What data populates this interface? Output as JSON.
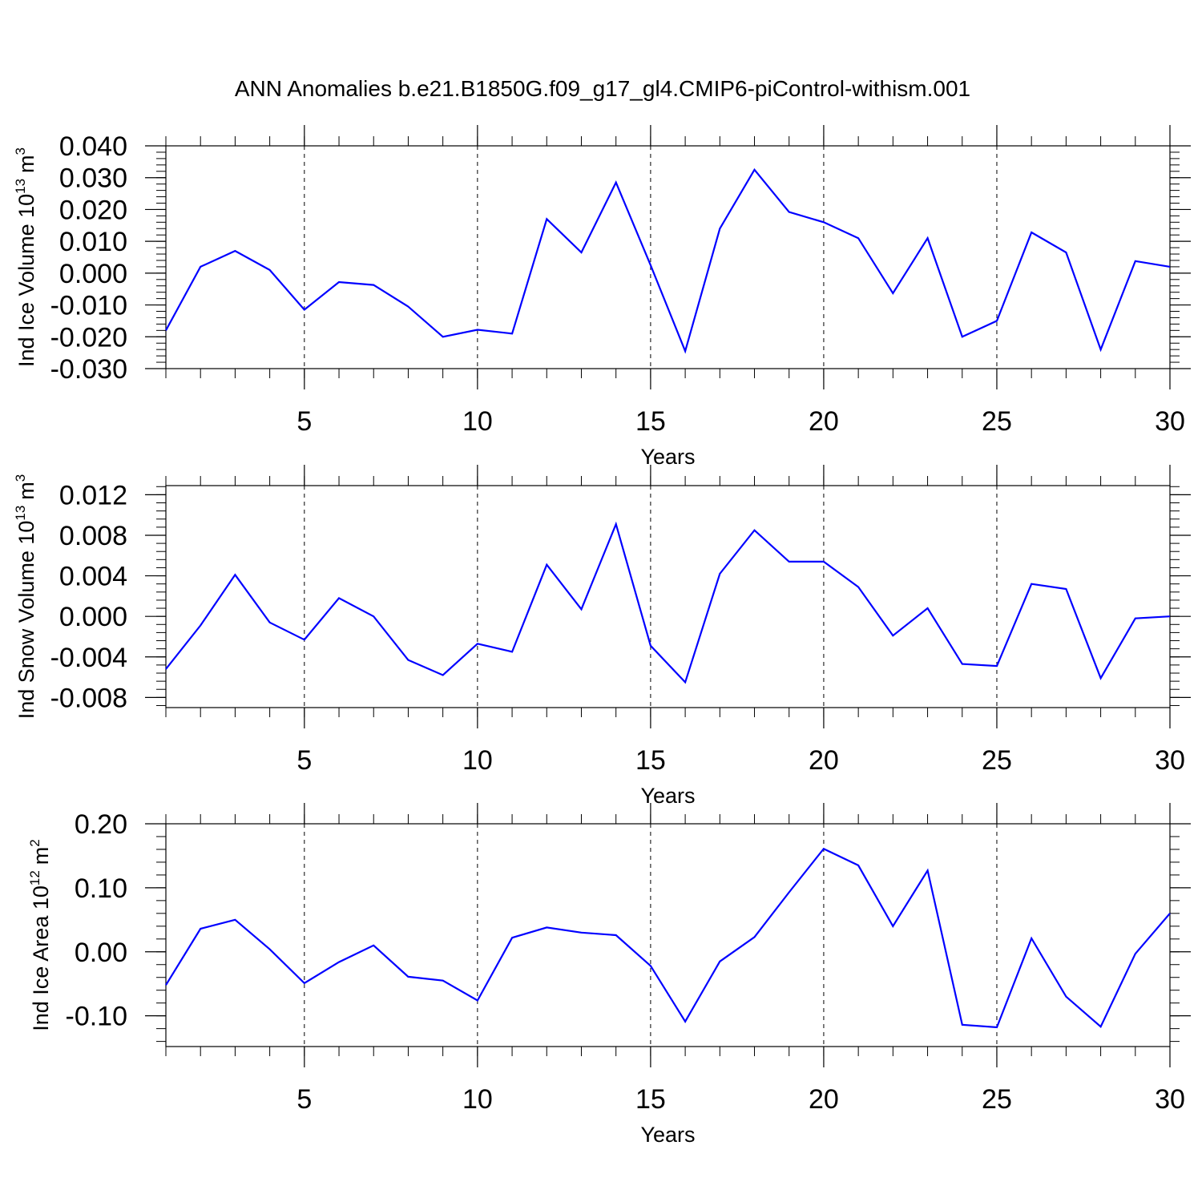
{
  "title": "ANN Anomalies b.e21.B1850G.f09_g17_gl4.CMIP6-piControl-withism.001",
  "colors": {
    "line": "#0000ff",
    "axes": "#000000",
    "grid": "#000000"
  },
  "chart_data": [
    {
      "type": "line",
      "ylabel": "Ind Ice Volume 10",
      "ylabel_exp": "13",
      "ylabel_unit": "m",
      "ylabel_unit_exp": "3",
      "xlabel": "Years",
      "xlim": [
        1,
        30
      ],
      "ylim": [
        -0.03,
        0.04
      ],
      "xticks": [
        "5",
        "10",
        "15",
        "20",
        "25",
        "30"
      ],
      "yticks": [
        "-0.030",
        "-0.020",
        "-0.010",
        "0.000",
        "0.010",
        "0.020",
        "0.030",
        "0.040"
      ],
      "grid": "vertical dashed at major x ticks",
      "x": [
        1,
        2,
        3,
        4,
        5,
        6,
        7,
        8,
        9,
        10,
        11,
        12,
        13,
        14,
        15,
        16,
        17,
        18,
        19,
        20,
        21,
        22,
        23,
        24,
        25,
        26,
        27,
        28,
        29,
        30
      ],
      "y": [
        -0.018,
        0.002,
        0.007,
        0.001,
        -0.0115,
        -0.0028,
        -0.0037,
        -0.0105,
        -0.02,
        -0.0178,
        -0.019,
        0.017,
        0.0065,
        0.0285,
        0.0025,
        -0.0245,
        0.014,
        0.0325,
        0.0192,
        0.016,
        0.011,
        -0.0063,
        0.011,
        -0.02,
        -0.015,
        0.0128,
        0.0065,
        -0.024,
        0.0038,
        0.002
      ]
    },
    {
      "type": "line",
      "ylabel": "Ind Snow Volume 10",
      "ylabel_exp": "13",
      "ylabel_unit": "m",
      "ylabel_unit_exp": "3",
      "xlabel": "Years",
      "xlim": [
        1,
        30
      ],
      "ylim": [
        -0.009,
        0.0129
      ],
      "xticks": [
        "5",
        "10",
        "15",
        "20",
        "25",
        "30"
      ],
      "yticks": [
        "-0.008",
        "-0.004",
        "0.000",
        "0.004",
        "0.008",
        "0.012"
      ],
      "grid": "vertical dashed at major x ticks",
      "x": [
        1,
        2,
        3,
        4,
        5,
        6,
        7,
        8,
        9,
        10,
        11,
        12,
        13,
        14,
        15,
        16,
        17,
        18,
        19,
        20,
        21,
        22,
        23,
        24,
        25,
        26,
        27,
        28,
        29,
        30
      ],
      "y": [
        -0.0052,
        -0.0009,
        0.0041,
        -0.0006,
        -0.0023,
        0.0018,
        0.0,
        -0.0043,
        -0.0058,
        -0.0027,
        -0.0035,
        0.0051,
        0.0007,
        0.0091,
        -0.0029,
        -0.0065,
        0.0042,
        0.0085,
        0.0054,
        0.0054,
        0.0029,
        -0.0019,
        0.0008,
        -0.0047,
        -0.0049,
        0.0032,
        0.0027,
        -0.0061,
        -0.0002,
        0.0
      ]
    },
    {
      "type": "line",
      "ylabel": "Ind Ice Area 10",
      "ylabel_exp": "12",
      "ylabel_unit": "m",
      "ylabel_unit_exp": "2",
      "xlabel": "Years",
      "xlim": [
        1,
        30
      ],
      "ylim": [
        -0.148,
        0.2
      ],
      "xticks": [
        "5",
        "10",
        "15",
        "20",
        "25",
        "30"
      ],
      "yticks": [
        "-0.10",
        "0.00",
        "0.10",
        "0.20"
      ],
      "grid": "vertical dashed at major x ticks",
      "x": [
        1,
        2,
        3,
        4,
        5,
        6,
        7,
        8,
        9,
        10,
        11,
        12,
        13,
        14,
        15,
        16,
        17,
        18,
        19,
        20,
        21,
        22,
        23,
        24,
        25,
        26,
        27,
        28,
        29,
        30
      ],
      "y": [
        -0.052,
        0.036,
        0.05,
        0.004,
        -0.049,
        -0.016,
        0.01,
        -0.039,
        -0.045,
        -0.076,
        0.022,
        0.038,
        0.03,
        0.026,
        -0.022,
        -0.109,
        -0.015,
        0.023,
        0.093,
        0.161,
        0.135,
        0.04,
        0.127,
        -0.114,
        -0.118,
        0.021,
        -0.07,
        -0.117,
        -0.003,
        0.06
      ]
    }
  ]
}
